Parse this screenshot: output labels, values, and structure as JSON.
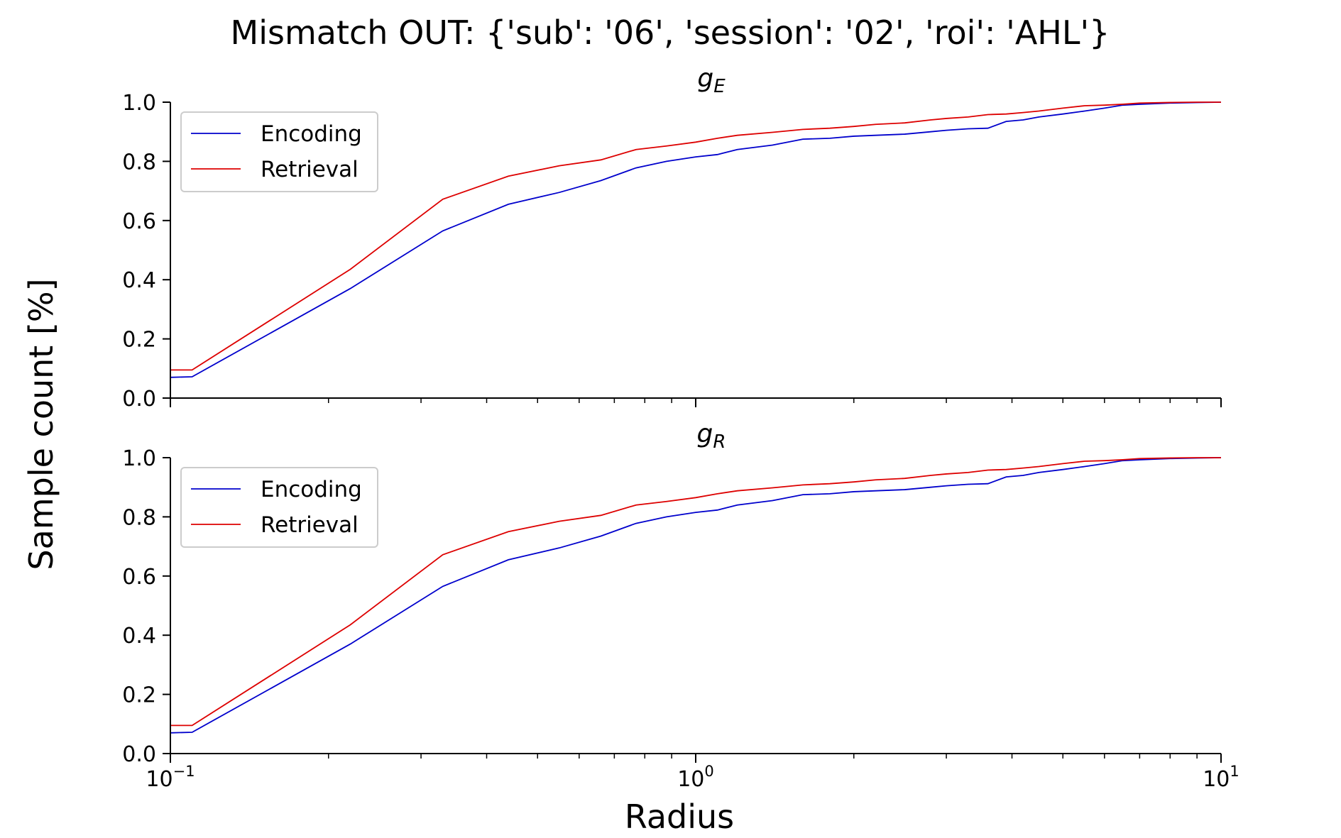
{
  "figure": {
    "suptitle": "Mismatch OUT: {'sub': '06', 'session': '02', 'roi': 'AHL'}",
    "xlabel": "Radius",
    "ylabel": "Sample count [%]"
  },
  "colors": {
    "encoding": "#0000cc",
    "retrieval": "#dd0000"
  },
  "chart_data": [
    {
      "type": "line",
      "title": "g_E",
      "title_main": "g",
      "title_sub": "E",
      "xscale": "log",
      "xlim": [
        0.1,
        10
      ],
      "ylim": [
        0,
        1
      ],
      "xticks": [
        {
          "value": 0.1,
          "base": "10",
          "exp": "−1"
        },
        {
          "value": 1,
          "base": "10",
          "exp": "0"
        },
        {
          "value": 10,
          "base": "10",
          "exp": "1"
        }
      ],
      "yticks": [
        "0.0",
        "0.2",
        "0.4",
        "0.6",
        "0.8",
        "1.0"
      ],
      "legend": "upper-left",
      "series": [
        {
          "name": "Encoding",
          "x": [
            0.1,
            0.11,
            0.22,
            0.33,
            0.44,
            0.55,
            0.66,
            0.77,
            0.88,
            1.0,
            1.1,
            1.2,
            1.4,
            1.6,
            1.8,
            2.0,
            2.2,
            2.5,
            2.8,
            3.0,
            3.3,
            3.6,
            3.9,
            4.2,
            4.5,
            5.0,
            5.5,
            6.0,
            6.5,
            7.0,
            8.0,
            9.0,
            10.0
          ],
          "y": [
            0.07,
            0.072,
            0.37,
            0.565,
            0.655,
            0.695,
            0.735,
            0.778,
            0.8,
            0.815,
            0.823,
            0.84,
            0.855,
            0.875,
            0.878,
            0.885,
            0.888,
            0.892,
            0.9,
            0.905,
            0.91,
            0.912,
            0.935,
            0.94,
            0.95,
            0.96,
            0.97,
            0.98,
            0.99,
            0.993,
            0.997,
            0.999,
            1.0
          ]
        },
        {
          "name": "Retrieval",
          "x": [
            0.1,
            0.11,
            0.22,
            0.33,
            0.44,
            0.55,
            0.66,
            0.77,
            0.88,
            1.0,
            1.1,
            1.2,
            1.4,
            1.6,
            1.8,
            2.0,
            2.2,
            2.5,
            2.8,
            3.0,
            3.3,
            3.6,
            3.9,
            4.2,
            4.5,
            5.0,
            5.5,
            6.0,
            6.5,
            7.0,
            8.0,
            9.0,
            10.0
          ],
          "y": [
            0.095,
            0.095,
            0.435,
            0.672,
            0.75,
            0.785,
            0.805,
            0.84,
            0.852,
            0.865,
            0.878,
            0.888,
            0.898,
            0.908,
            0.912,
            0.918,
            0.925,
            0.93,
            0.94,
            0.945,
            0.95,
            0.958,
            0.96,
            0.965,
            0.97,
            0.98,
            0.988,
            0.99,
            0.993,
            0.997,
            0.999,
            1.0,
            1.0
          ]
        }
      ]
    },
    {
      "type": "line",
      "title": "g_R",
      "title_main": "g",
      "title_sub": "R",
      "xscale": "log",
      "xlim": [
        0.1,
        10
      ],
      "ylim": [
        0,
        1
      ],
      "xticks": [
        {
          "value": 0.1,
          "base": "10",
          "exp": "−1"
        },
        {
          "value": 1,
          "base": "10",
          "exp": "0"
        },
        {
          "value": 10,
          "base": "10",
          "exp": "1"
        }
      ],
      "yticks": [
        "0.0",
        "0.2",
        "0.4",
        "0.6",
        "0.8",
        "1.0"
      ],
      "legend": "upper-left",
      "series": [
        {
          "name": "Encoding",
          "x": [
            0.1,
            0.11,
            0.22,
            0.33,
            0.44,
            0.55,
            0.66,
            0.77,
            0.88,
            1.0,
            1.1,
            1.2,
            1.4,
            1.6,
            1.8,
            2.0,
            2.2,
            2.5,
            2.8,
            3.0,
            3.3,
            3.6,
            3.9,
            4.2,
            4.5,
            5.0,
            5.5,
            6.0,
            6.5,
            7.0,
            8.0,
            9.0,
            10.0
          ],
          "y": [
            0.07,
            0.072,
            0.37,
            0.565,
            0.655,
            0.695,
            0.735,
            0.778,
            0.8,
            0.815,
            0.823,
            0.84,
            0.855,
            0.875,
            0.878,
            0.885,
            0.888,
            0.892,
            0.9,
            0.905,
            0.91,
            0.912,
            0.935,
            0.94,
            0.95,
            0.96,
            0.97,
            0.98,
            0.99,
            0.993,
            0.997,
            0.999,
            1.0
          ]
        },
        {
          "name": "Retrieval",
          "x": [
            0.1,
            0.11,
            0.22,
            0.33,
            0.44,
            0.55,
            0.66,
            0.77,
            0.88,
            1.0,
            1.1,
            1.2,
            1.4,
            1.6,
            1.8,
            2.0,
            2.2,
            2.5,
            2.8,
            3.0,
            3.3,
            3.6,
            3.9,
            4.2,
            4.5,
            5.0,
            5.5,
            6.0,
            6.5,
            7.0,
            8.0,
            9.0,
            10.0
          ],
          "y": [
            0.095,
            0.095,
            0.435,
            0.672,
            0.75,
            0.785,
            0.805,
            0.84,
            0.852,
            0.865,
            0.878,
            0.888,
            0.898,
            0.908,
            0.912,
            0.918,
            0.925,
            0.93,
            0.94,
            0.945,
            0.95,
            0.958,
            0.96,
            0.965,
            0.97,
            0.98,
            0.988,
            0.99,
            0.993,
            0.997,
            0.999,
            1.0,
            1.0
          ]
        }
      ]
    }
  ]
}
